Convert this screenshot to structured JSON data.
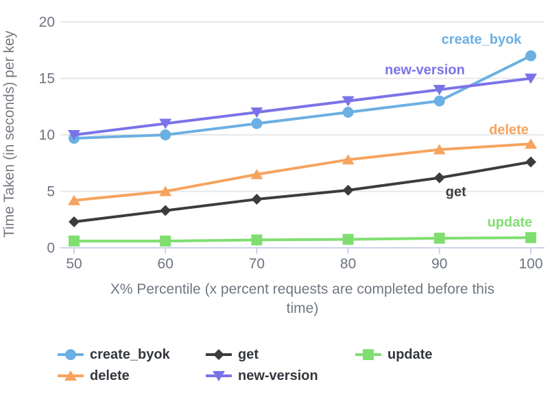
{
  "chart_data": {
    "type": "line",
    "x": [
      50,
      60,
      70,
      80,
      90,
      100
    ],
    "x_tick_labels": [
      "50",
      "60",
      "70",
      "80",
      "90",
      "100"
    ],
    "y_ticks": [
      0,
      5,
      10,
      15,
      20
    ],
    "xlim": [
      50,
      100
    ],
    "ylim": [
      0,
      20
    ],
    "grid": true,
    "legend_position": "bottom",
    "xlabel": "X% Percentile (x percent requests are completed before this time)",
    "xlabel_lines": [
      "X% Percentile (x percent requests are completed before this",
      "time)"
    ],
    "ylabel": "Time Taken (in seconds) per key",
    "series": [
      {
        "name": "create_byok",
        "color": "#6cafe2",
        "marker": "circle",
        "values": [
          9.7,
          10,
          11,
          12,
          13,
          17
        ],
        "label_at": {
          "x": 94.6,
          "y": 18.5
        }
      },
      {
        "name": "delete",
        "color": "#f6a35e",
        "marker": "triangle-up",
        "values": [
          4.2,
          5,
          6.5,
          7.8,
          8.7,
          9.2
        ],
        "label_at": {
          "x": 97.6,
          "y": 10.5
        }
      },
      {
        "name": "get",
        "color": "#3c3c3c",
        "marker": "diamond",
        "values": [
          2.3,
          3.3,
          4.3,
          5.1,
          6.2,
          7.6
        ],
        "label_at": {
          "x": 91.8,
          "y": 5.0
        }
      },
      {
        "name": "new-version",
        "color": "#7a73e8",
        "marker": "triangle-down",
        "values": [
          10,
          11,
          12,
          13,
          14,
          15
        ],
        "label_at": {
          "x": 88.4,
          "y": 15.8
        }
      },
      {
        "name": "update",
        "color": "#80de71",
        "marker": "square",
        "values": [
          0.6,
          0.6,
          0.7,
          0.75,
          0.85,
          0.9
        ],
        "label_at": {
          "x": 97.7,
          "y": 2.3
        }
      }
    ],
    "legend_order": [
      "create_byok",
      "get",
      "update",
      "delete",
      "new-version"
    ]
  },
  "styles": {
    "grid_color": "#e7e7e7",
    "axis_color": "#c9d3ea",
    "tick_label_color": "#6b7380",
    "axis_title_color": "#757b82",
    "legend_text_color": "#33373d",
    "background": "#ffffff"
  }
}
